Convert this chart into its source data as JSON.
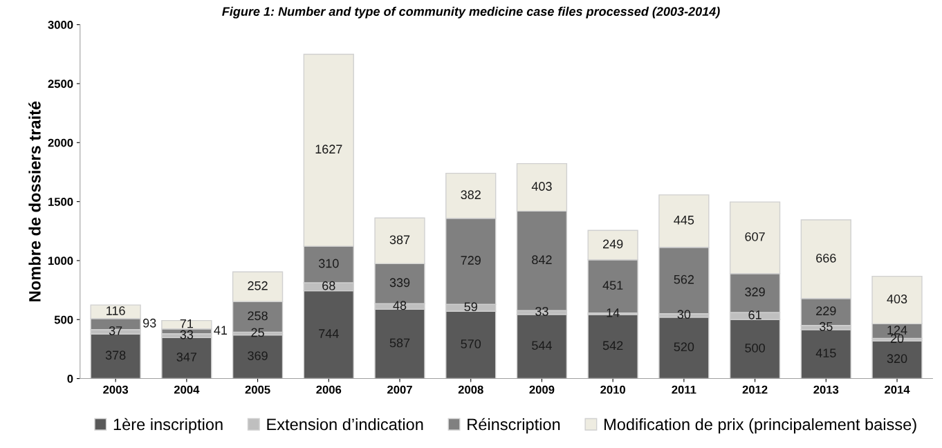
{
  "chart_data": {
    "type": "bar",
    "title": "Figure 1: Number and type of community medicine case files processed (2003-2014)",
    "ylabel": "Nombre de dossiers traité",
    "categories": [
      "2003",
      "2004",
      "2005",
      "2006",
      "2007",
      "2008",
      "2009",
      "2010",
      "2011",
      "2012",
      "2013",
      "2014"
    ],
    "stacked": true,
    "data_labels": true,
    "legend": "bottom",
    "grid": false,
    "ylim": [
      0,
      3000
    ],
    "yticks": [
      0,
      500,
      1000,
      1500,
      2000,
      2500,
      3000
    ],
    "series": [
      {
        "name": "1ère inscription",
        "color": "#595959",
        "values": [
          378,
          347,
          369,
          744,
          587,
          570,
          544,
          542,
          520,
          500,
          415,
          320
        ]
      },
      {
        "name": "Extension d’indication",
        "color": "#bfbfbf",
        "values": [
          37,
          33,
          25,
          68,
          48,
          59,
          33,
          14,
          30,
          61,
          35,
          20
        ]
      },
      {
        "name": "Réinscription",
        "color": "#808080",
        "values": [
          93,
          41,
          258,
          310,
          339,
          729,
          842,
          451,
          562,
          329,
          229,
          124
        ]
      },
      {
        "name": "Modification de prix (principalement baisse)",
        "color": "#eeece1",
        "values": [
          116,
          71,
          252,
          1627,
          387,
          382,
          403,
          249,
          445,
          607,
          666,
          403
        ]
      }
    ]
  }
}
